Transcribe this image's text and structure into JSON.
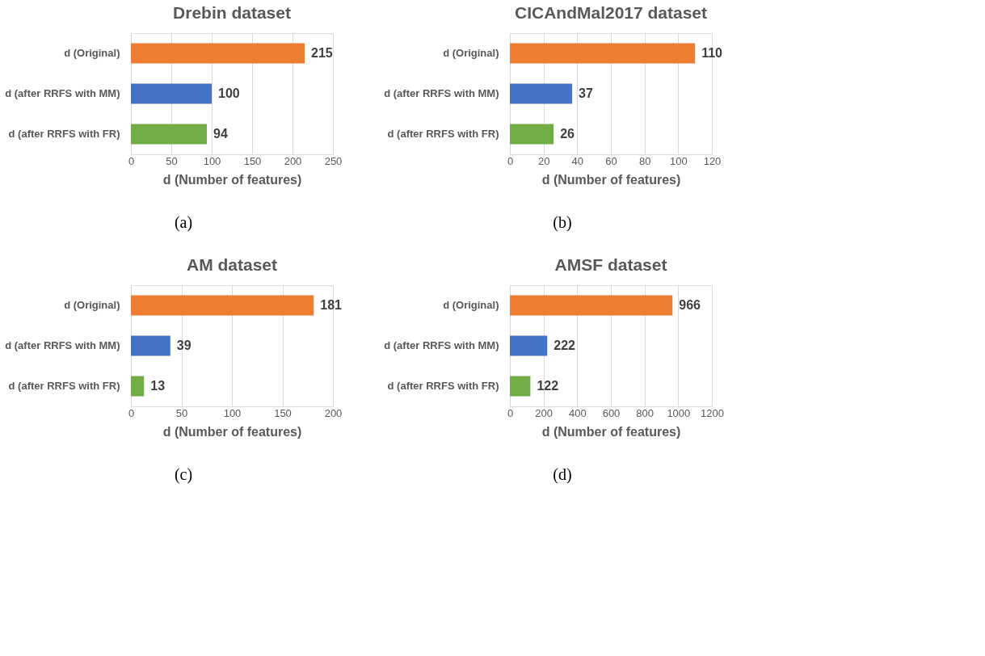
{
  "chart_data": [
    {
      "type": "bar",
      "orientation": "horizontal",
      "title": "Drebin dataset",
      "xlabel": "d (Number of features)",
      "categories": [
        "d (Original)",
        "d (after RRFS with MM)",
        "d (after RRFS with FR)"
      ],
      "values": [
        215,
        100,
        94
      ],
      "colors": [
        "#ed7d31",
        "#4472c4",
        "#70ad47"
      ],
      "xlim": [
        0,
        250
      ],
      "xticks": [
        0,
        50,
        100,
        150,
        200,
        250
      ],
      "grid": "x",
      "data_labels": true,
      "annotations": [
        "(a)"
      ]
    },
    {
      "type": "bar",
      "orientation": "horizontal",
      "title": "CICAndMal2017 dataset",
      "xlabel": "d (Number of features)",
      "categories": [
        "d (Original)",
        "d (after RRFS with MM)",
        "d (after RRFS with FR)"
      ],
      "values": [
        110,
        37,
        26
      ],
      "colors": [
        "#ed7d31",
        "#4472c4",
        "#70ad47"
      ],
      "xlim": [
        0,
        120
      ],
      "xticks": [
        0,
        20,
        40,
        60,
        80,
        100,
        120
      ],
      "grid": "x",
      "data_labels": true,
      "annotations": [
        "(b)"
      ]
    },
    {
      "type": "bar",
      "orientation": "horizontal",
      "title": "AM dataset",
      "xlabel": "d (Number of features)",
      "categories": [
        "d (Original)",
        "d (after RRFS with MM)",
        "d (after RRFS with FR)"
      ],
      "values": [
        181,
        39,
        13
      ],
      "colors": [
        "#ed7d31",
        "#4472c4",
        "#70ad47"
      ],
      "xlim": [
        0,
        200
      ],
      "xticks": [
        0,
        50,
        100,
        150,
        200
      ],
      "grid": "x",
      "data_labels": true,
      "annotations": [
        "(c)"
      ]
    },
    {
      "type": "bar",
      "orientation": "horizontal",
      "title": "AMSF dataset",
      "xlabel": "d (Number of features)",
      "categories": [
        "d (Original)",
        "d (after RRFS with MM)",
        "d (after RRFS with FR)"
      ],
      "values": [
        966,
        222,
        122
      ],
      "colors": [
        "#ed7d31",
        "#4472c4",
        "#70ad47"
      ],
      "xlim": [
        0,
        1200
      ],
      "xticks": [
        0,
        200,
        400,
        600,
        800,
        1000,
        1200
      ],
      "grid": "x",
      "data_labels": true,
      "annotations": [
        "(d)"
      ]
    }
  ]
}
